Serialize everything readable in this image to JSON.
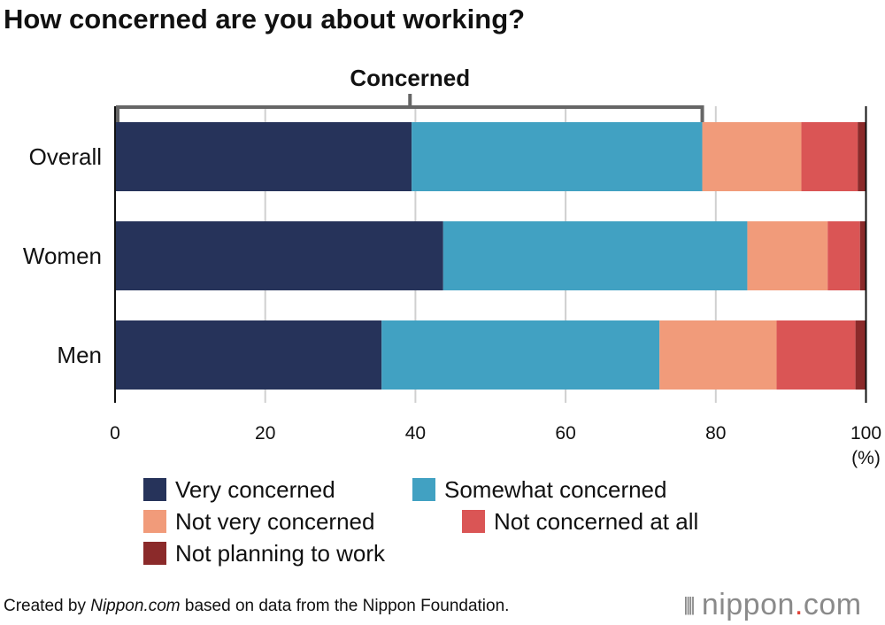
{
  "chart_data": {
    "type": "bar",
    "orientation": "horizontal",
    "stacked": true,
    "title": "How concerned are you about working?",
    "categories": [
      "Overall",
      "Women",
      "Men"
    ],
    "series": [
      {
        "name": "Very concerned",
        "color": "#26335a",
        "values": [
          39.5,
          43.7,
          35.5
        ]
      },
      {
        "name": "Somewhat concerned",
        "color": "#41a1c2",
        "values": [
          38.7,
          40.5,
          37.0
        ]
      },
      {
        "name": "Not very concerned",
        "color": "#f19b7a",
        "values": [
          13.2,
          10.7,
          15.6
        ]
      },
      {
        "name": "Not concerned at all",
        "color": "#da5555",
        "values": [
          7.5,
          4.3,
          10.5
        ]
      },
      {
        "name": "Not planning to work",
        "color": "#8b2a2a",
        "values": [
          1.1,
          0.8,
          1.4
        ]
      }
    ],
    "xlim": [
      0,
      100
    ],
    "xticks": [
      "0",
      "20",
      "40",
      "60",
      "80",
      "100"
    ],
    "xunit": "(%)",
    "grid": true,
    "annotation": {
      "label": "Concerned",
      "spans": [
        "Very concerned",
        "Somewhat concerned"
      ],
      "range_of": "Overall"
    },
    "legend_position": "bottom"
  },
  "footer": {
    "prefix": "Created by ",
    "source_site": "Nippon.com",
    "suffix": " based on data from the Nippon Foundation."
  },
  "logo": {
    "text": "nippon",
    "dot": ".",
    "tld": "com"
  }
}
